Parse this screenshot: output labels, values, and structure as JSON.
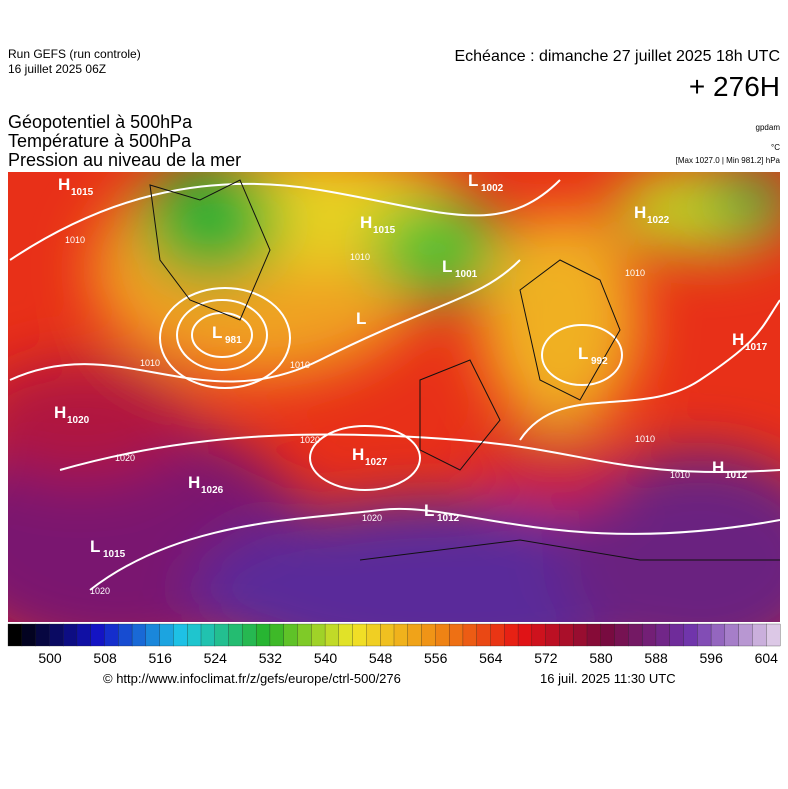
{
  "header": {
    "run": "Run GEFS (run controle)",
    "run_date": "16 juillet 2025 06Z",
    "valid": "Echéance : dimanche 27 juillet 2025 18h UTC",
    "lead": "+ 276H"
  },
  "fields": [
    "Géopotentiel à 500hPa",
    "Température à 500hPa",
    "Pression au niveau de la mer"
  ],
  "units": {
    "geopotential": "gpdam",
    "temperature": "°C",
    "pressure": "[Max 1027.0 | Min 981.2] hPa"
  },
  "centers": [
    {
      "letter": "H",
      "value": "1015"
    },
    {
      "letter": "L",
      "value": "1002"
    },
    {
      "letter": "H",
      "value": "1015"
    },
    {
      "letter": "H",
      "value": "1022"
    },
    {
      "letter": "L",
      "value": "1001"
    },
    {
      "letter": "L",
      "value": "981"
    },
    {
      "letter": "L",
      "value": "992"
    },
    {
      "letter": "H",
      "value": "1017"
    },
    {
      "letter": "H",
      "value": "1020"
    },
    {
      "letter": "H",
      "value": "1027"
    },
    {
      "letter": "H",
      "value": "1012"
    },
    {
      "letter": "H",
      "value": "1026"
    },
    {
      "letter": "L",
      "value": "1012"
    },
    {
      "letter": "L",
      "value": "1015"
    },
    {
      "letter": "L",
      "value": ""
    }
  ],
  "isobar_labels": [
    "1010",
    "1010",
    "1010",
    "1010",
    "1020",
    "1020",
    "1020",
    "1020",
    "1010",
    "1010",
    "1010"
  ],
  "legend": {
    "ticks": [
      "500",
      "508",
      "516",
      "524",
      "532",
      "540",
      "548",
      "556",
      "564",
      "572",
      "580",
      "588",
      "596",
      "604"
    ]
  },
  "footer": {
    "source": "© http://www.infoclimat.fr/z/gefs/europe/ctrl-500/276",
    "issued": "16 juil. 2025 11:30 UTC"
  }
}
